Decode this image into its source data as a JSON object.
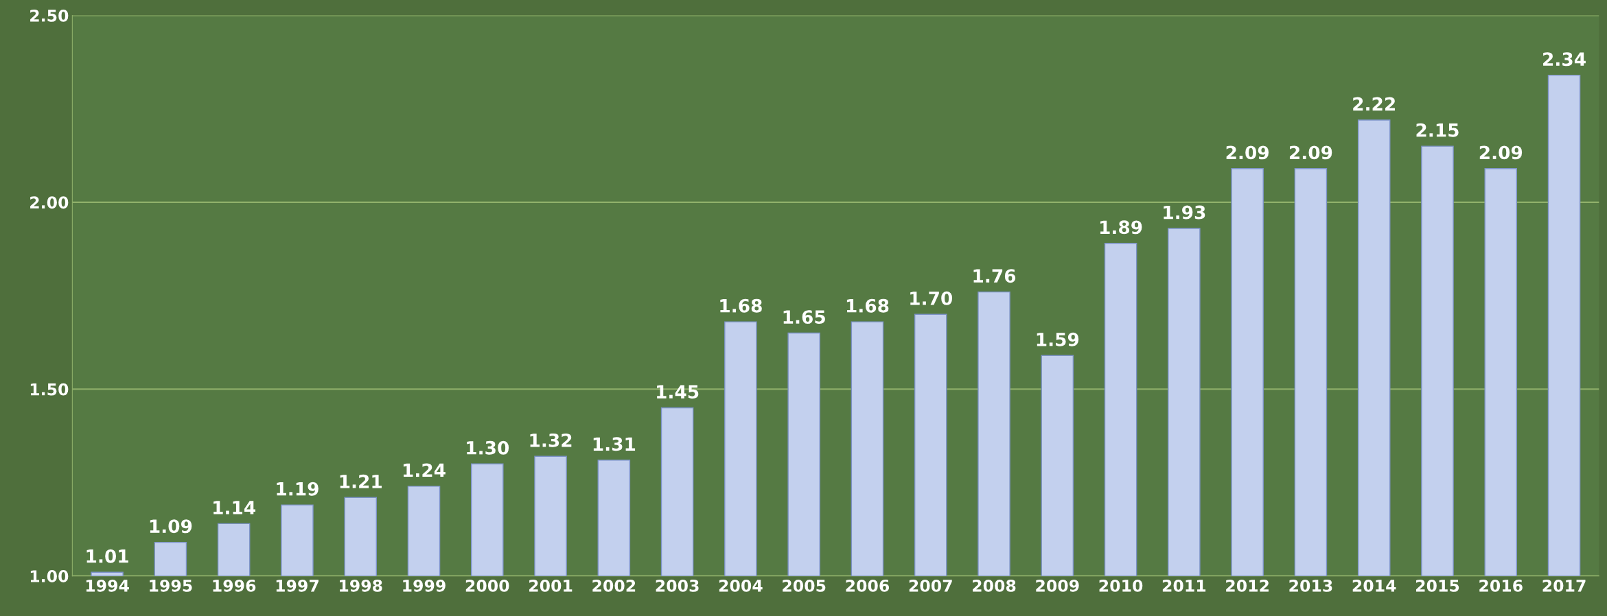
{
  "chart_data": {
    "type": "bar",
    "categories": [
      "1994",
      "1995",
      "1996",
      "1997",
      "1998",
      "1999",
      "2000",
      "2001",
      "2002",
      "2003",
      "2004",
      "2005",
      "2006",
      "2007",
      "2008",
      "2009",
      "2010",
      "2011",
      "2012",
      "2013",
      "2014",
      "2015",
      "2016",
      "2017"
    ],
    "values": [
      1.01,
      1.09,
      1.14,
      1.19,
      1.21,
      1.24,
      1.3,
      1.32,
      1.31,
      1.45,
      1.68,
      1.65,
      1.68,
      1.7,
      1.76,
      1.59,
      1.89,
      1.93,
      2.09,
      2.09,
      2.22,
      2.15,
      2.09,
      2.34
    ],
    "value_labels": [
      "1.01",
      "1.09",
      "1.14",
      "1.19",
      "1.21",
      "1.24",
      "1.30",
      "1.32",
      "1.31",
      "1.45",
      "1.68",
      "1.65",
      "1.68",
      "1.70",
      "1.76",
      "1.59",
      "1.89",
      "1.93",
      "2.09",
      "2.09",
      "2.22",
      "2.15",
      "2.09",
      "2.34"
    ],
    "color": "#c3d0ee",
    "ylim": [
      1.0,
      2.5
    ],
    "yticks": [
      {
        "value": 1.0,
        "label": "1.00"
      },
      {
        "value": 1.5,
        "label": "1.50"
      },
      {
        "value": 2.0,
        "label": "2.00"
      },
      {
        "value": 2.5,
        "label": "2.50"
      }
    ],
    "grid": "y",
    "legend": false
  }
}
